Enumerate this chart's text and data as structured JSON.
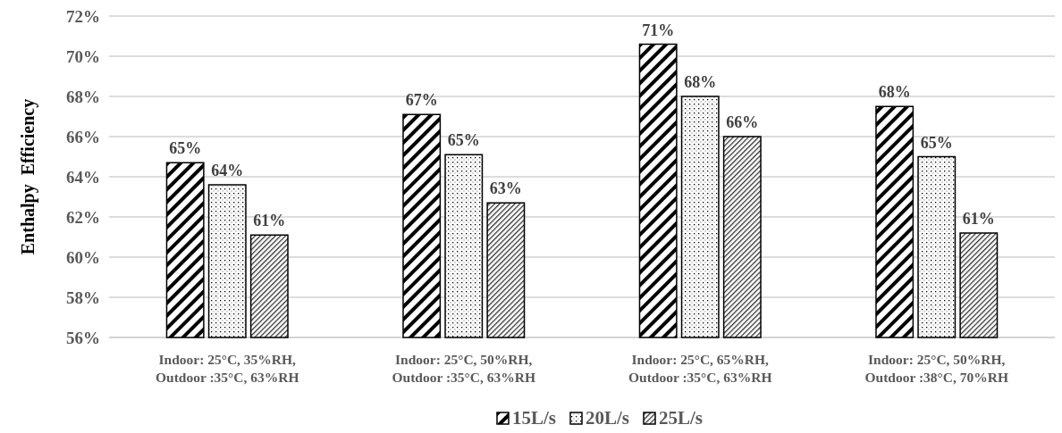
{
  "chart_data": {
    "type": "bar",
    "ylabel": "Enthalpy  Efficiency",
    "categories": [
      "Indoor: 25°C, 35%RH,\nOutdoor :35°C, 63%RH",
      "Indoor: 25°C, 50%RH,\nOutdoor :35°C, 63%RH",
      "Indoor: 25°C, 65%RH,\nOutdoor :35°C, 63%RH",
      "Indoor: 25°C, 50%RH,\nOutdoor :38°C, 70%RH"
    ],
    "series": [
      {
        "name": "15L/s",
        "color": "#000000",
        "values": [
          64.7,
          67.1,
          70.6,
          67.5
        ],
        "value_labels": [
          "65%",
          "67%",
          "71%",
          "68%"
        ]
      },
      {
        "name": "20L/s",
        "color": "#000000",
        "values": [
          63.6,
          65.1,
          68.0,
          65.0
        ],
        "value_labels": [
          "64%",
          "65%",
          "68%",
          "65%"
        ]
      },
      {
        "name": "25L/s",
        "color": "#000000",
        "values": [
          61.1,
          62.7,
          66.0,
          61.2
        ],
        "value_labels": [
          "61%",
          "63%",
          "66%",
          "61%"
        ]
      }
    ],
    "ylim": [
      56,
      72
    ],
    "yticks": [
      {
        "value": 56,
        "label": "56%"
      },
      {
        "value": 58,
        "label": "58%"
      },
      {
        "value": 60,
        "label": "60%"
      },
      {
        "value": 62,
        "label": "62%"
      },
      {
        "value": 64,
        "label": "64%"
      },
      {
        "value": 66,
        "label": "66%"
      },
      {
        "value": 68,
        "label": "68%"
      },
      {
        "value": 70,
        "label": "70%"
      },
      {
        "value": 72,
        "label": "72%"
      }
    ],
    "grid": "y",
    "legend": "bottom"
  }
}
